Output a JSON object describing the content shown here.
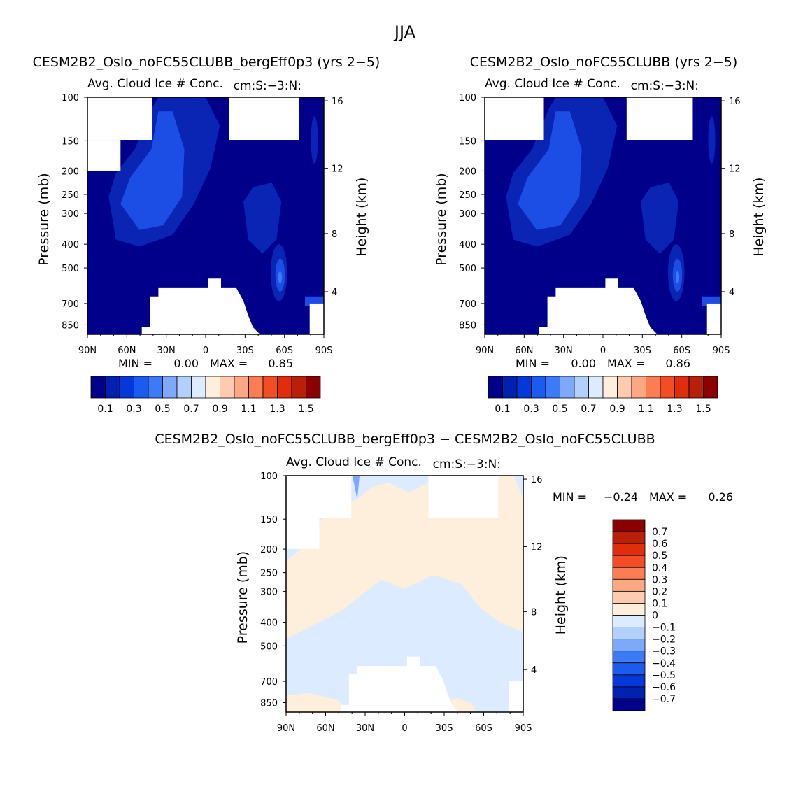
{
  "figure": {
    "title": "JJA"
  },
  "chart_data": [
    {
      "type": "heatmap",
      "id": "panel1",
      "title": "CESM2B2_Oslo_noFC55CLUBB_bergEff0p3 (yrs 2-5)",
      "subtitle_left": "Avg. Cloud Ice # Conc.",
      "subtitle_right": "cm:S:-3:N:",
      "ylabel": "Pressure (mb)",
      "ylabel_right": "Height (km)",
      "xticks": [
        "90N",
        "60N",
        "30N",
        "0",
        "30S",
        "60S",
        "90S"
      ],
      "yticks": [
        "100",
        "150",
        "200",
        "250",
        "300",
        "400",
        "500",
        "700",
        "850"
      ],
      "yticks_right": [
        "16",
        "12",
        "8",
        "4"
      ],
      "stats": {
        "min_label": "MIN =",
        "min_value": "0.00",
        "max_label": "MAX =",
        "max_value": "0.85"
      },
      "colorbar": {
        "orientation": "horizontal",
        "labels": [
          "0.1",
          "0.3",
          "0.5",
          "0.7",
          "0.9",
          "1.1",
          "1.3",
          "1.5"
        ],
        "colors": [
          "#00008b",
          "#0020b0",
          "#0438d8",
          "#1a5cf0",
          "#3d7af6",
          "#7ea8f9",
          "#b3cffb",
          "#dcebff",
          "#feeedc",
          "#fdccb0",
          "#fca882",
          "#fb7d54",
          "#f24d25",
          "#e12d0c",
          "#b8200a",
          "#8b0000"
        ]
      },
      "field_colors": {
        "background": "#00008b",
        "level1": "#0a24b4",
        "level2": "#1c4ee6",
        "level3": "#3d7af6"
      }
    },
    {
      "type": "heatmap",
      "id": "panel2",
      "title": "CESM2B2_Oslo_noFC55CLUBB (yrs 2-5)",
      "subtitle_left": "Avg. Cloud Ice # Conc.",
      "subtitle_right": "cm:S:-3:N:",
      "ylabel": "Pressure (mb)",
      "ylabel_right": "Height (km)",
      "xticks": [
        "90N",
        "60N",
        "30N",
        "0",
        "30S",
        "60S",
        "90S"
      ],
      "yticks": [
        "100",
        "150",
        "200",
        "250",
        "300",
        "400",
        "500",
        "700",
        "850"
      ],
      "yticks_right": [
        "16",
        "12",
        "8",
        "4"
      ],
      "stats": {
        "min_label": "MIN =",
        "min_value": "0.00",
        "max_label": "MAX =",
        "max_value": "0.86"
      },
      "colorbar": {
        "orientation": "horizontal",
        "labels": [
          "0.1",
          "0.3",
          "0.5",
          "0.7",
          "0.9",
          "1.1",
          "1.3",
          "1.5"
        ],
        "colors": [
          "#00008b",
          "#0020b0",
          "#0438d8",
          "#1a5cf0",
          "#3d7af6",
          "#7ea8f9",
          "#b3cffb",
          "#dcebff",
          "#feeedc",
          "#fdccb0",
          "#fca882",
          "#fb7d54",
          "#f24d25",
          "#e12d0c",
          "#b8200a",
          "#8b0000"
        ]
      },
      "field_colors": {
        "background": "#00008b",
        "level1": "#0a24b4",
        "level2": "#1c4ee6",
        "level3": "#3d7af6"
      }
    },
    {
      "type": "heatmap",
      "id": "panel3",
      "title": "CESM2B2_Oslo_noFC55CLUBB_bergEff0p3 - CESM2B2_Oslo_noFC55CLUBB",
      "subtitle_left": "Avg. Cloud Ice # Conc.",
      "subtitle_right": "cm:S:-3:N:",
      "ylabel": "Pressure (mb)",
      "ylabel_right": "Height (km)",
      "xticks": [
        "90N",
        "60N",
        "30N",
        "0",
        "30S",
        "60S",
        "90S"
      ],
      "yticks": [
        "100",
        "150",
        "200",
        "250",
        "300",
        "400",
        "500",
        "700",
        "850"
      ],
      "yticks_right": [
        "16",
        "12",
        "8",
        "4"
      ],
      "stats": {
        "min_label": "MIN =",
        "min_value": "-0.24",
        "max_label": "MAX =",
        "max_value": "0.26"
      },
      "colorbar": {
        "orientation": "vertical",
        "labels": [
          "0.7",
          "0.6",
          "0.5",
          "0.4",
          "0.3",
          "0.2",
          "0.1",
          "0",
          "-0.1",
          "-0.2",
          "-0.3",
          "-0.4",
          "-0.5",
          "-0.6",
          "-0.7"
        ],
        "colors": [
          "#8b0000",
          "#b8200a",
          "#e12d0c",
          "#f24d25",
          "#fb7d54",
          "#fca882",
          "#fdccb0",
          "#feeedc",
          "#dcebff",
          "#b3cffb",
          "#7ea8f9",
          "#3d7af6",
          "#1a5cf0",
          "#0438d8",
          "#0020b0",
          "#00008b"
        ]
      },
      "field_colors": {
        "positive": "#feeedc",
        "negative": "#dcebff",
        "strong_negative": "#7ea8f9"
      }
    }
  ]
}
